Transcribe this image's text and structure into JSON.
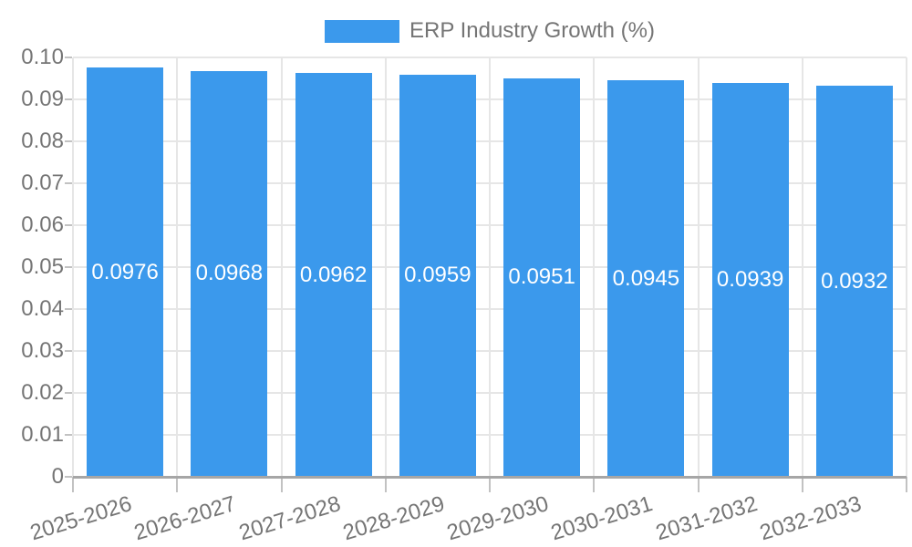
{
  "chart_data": {
    "type": "bar",
    "title": "ERP Industry Growth (%)",
    "legend_position": "top",
    "categories": [
      "2025-2026",
      "2026-2027",
      "2027-2028",
      "2028-2029",
      "2029-2030",
      "2030-2031",
      "2031-2032",
      "2032-2033"
    ],
    "values": [
      0.0976,
      0.0968,
      0.0962,
      0.0959,
      0.0951,
      0.0945,
      0.0939,
      0.0932
    ],
    "bar_labels": [
      "0.0976",
      "0.0968",
      "0.0962",
      "0.0959",
      "0.0951",
      "0.0945",
      "0.0939",
      "0.0932"
    ],
    "xlabel": "",
    "ylabel": "",
    "ylim": [
      0,
      0.1
    ],
    "ytick_labels": [
      "0",
      "0.01",
      "0.02",
      "0.03",
      "0.04",
      "0.05",
      "0.06",
      "0.07",
      "0.08",
      "0.09",
      "0.10"
    ],
    "grid": true,
    "colors": {
      "bar": "#3B99EC",
      "grid": "#e6e6e6",
      "baseline": "#a6a6a6",
      "tick": "#c2c2c2",
      "axis_text": "#757575",
      "legend_text": "#757575",
      "annotation_text": "#ffffff",
      "background": "#ffffff"
    }
  }
}
